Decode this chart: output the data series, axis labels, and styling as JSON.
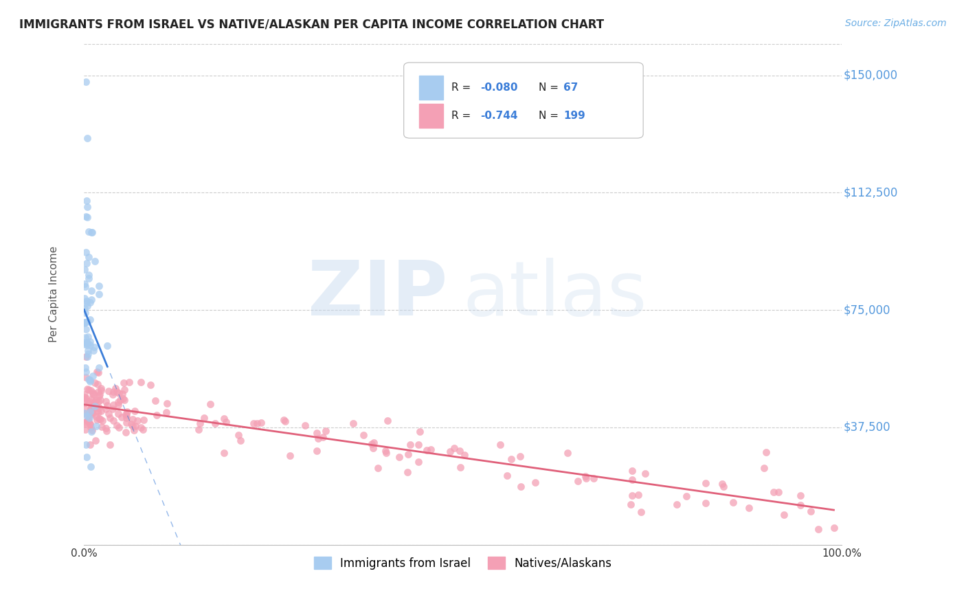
{
  "title": "IMMIGRANTS FROM ISRAEL VS NATIVE/ALASKAN PER CAPITA INCOME CORRELATION CHART",
  "source": "Source: ZipAtlas.com",
  "ylabel": "Per Capita Income",
  "ytick_labels": [
    "$37,500",
    "$75,000",
    "$112,500",
    "$150,000"
  ],
  "ytick_values": [
    37500,
    75000,
    112500,
    150000
  ],
  "ymin": 0,
  "ymax": 160000,
  "xmin": 0.0,
  "xmax": 1.0,
  "legend_label1": "Immigrants from Israel",
  "legend_label2": "Natives/Alaskans",
  "blue_color": "#A8CCF0",
  "pink_color": "#F4A0B5",
  "blue_line_color": "#3B7DD8",
  "pink_line_color": "#E0607A",
  "source_color": "#6AADE4",
  "ytick_color": "#5599DD",
  "watermark_zip_color": "#C8DCEF",
  "watermark_atlas_color": "#C8DCEF"
}
